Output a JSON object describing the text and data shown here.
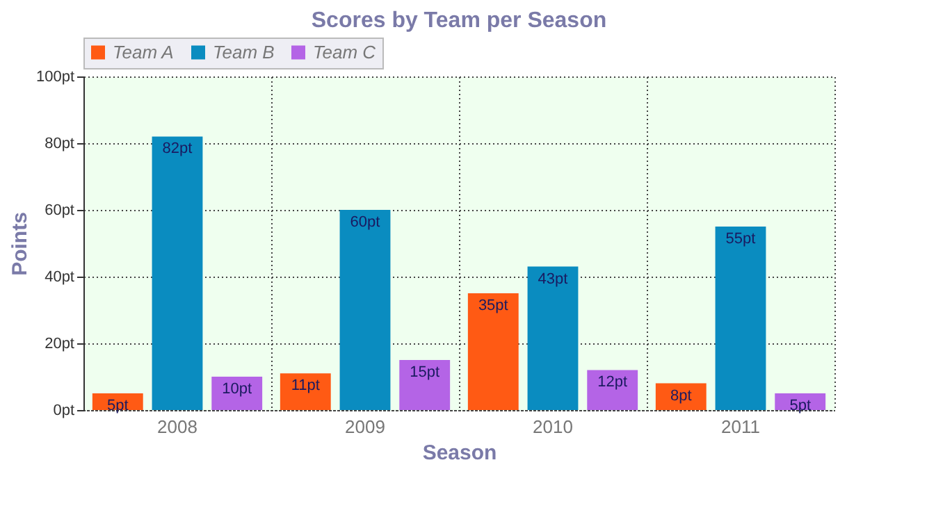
{
  "chart_data": {
    "type": "bar",
    "title": "Scores by Team per Season",
    "xlabel": "Season",
    "ylabel": "Points",
    "categories": [
      "2008",
      "2009",
      "2010",
      "2011"
    ],
    "series": [
      {
        "name": "Team A",
        "color": "#ff5a14",
        "values": [
          5,
          11,
          35,
          8
        ],
        "value_labels": [
          "5pt",
          "11pt",
          "35pt",
          "8pt"
        ]
      },
      {
        "name": "Team B",
        "color": "#0a8cc0",
        "values": [
          82,
          60,
          43,
          55
        ],
        "value_labels": [
          "82pt",
          "60pt",
          "43pt",
          "55pt"
        ]
      },
      {
        "name": "Team C",
        "color": "#b464e6",
        "values": [
          10,
          15,
          12,
          5
        ],
        "value_labels": [
          "10pt",
          "15pt",
          "12pt",
          "5pt"
        ]
      }
    ],
    "ylim": [
      0,
      100
    ],
    "yticks": [
      {
        "value": 0,
        "label": "0pt"
      },
      {
        "value": 20,
        "label": "20pt"
      },
      {
        "value": 40,
        "label": "40pt"
      },
      {
        "value": 60,
        "label": "60pt"
      },
      {
        "value": 80,
        "label": "80pt"
      },
      {
        "value": 100,
        "label": "100pt"
      }
    ],
    "grid": true,
    "legend": "top"
  }
}
